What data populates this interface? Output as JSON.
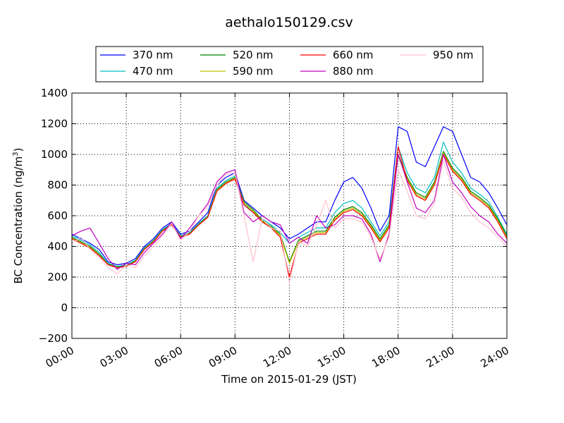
{
  "chart_data": {
    "type": "line",
    "title": "aethalo150129.csv",
    "xlabel": "Time on 2015-01-29 (JST)",
    "ylabel": {
      "prefix": "BC Concentration (ng/m",
      "superscript": "3",
      "suffix": ")"
    },
    "xlim": [
      0,
      24
    ],
    "ylim": [
      -200,
      1400
    ],
    "x_ticks": [
      "00:00",
      "03:00",
      "06:00",
      "09:00",
      "12:00",
      "15:00",
      "18:00",
      "21:00",
      "24:00"
    ],
    "y_ticks": [
      "−200",
      "0",
      "200",
      "400",
      "600",
      "800",
      "1000",
      "1200",
      "1400"
    ],
    "grid": true,
    "legend_placement": "top-center",
    "x": [
      0.0,
      0.5,
      1.0,
      1.5,
      2.0,
      2.5,
      3.0,
      3.5,
      4.0,
      4.5,
      5.0,
      5.5,
      6.0,
      6.5,
      7.0,
      7.5,
      8.0,
      8.5,
      9.0,
      9.5,
      10.0,
      10.5,
      11.0,
      11.5,
      12.0,
      12.5,
      13.0,
      13.5,
      14.0,
      14.5,
      15.0,
      15.5,
      16.0,
      16.5,
      17.0,
      17.5,
      18.0,
      18.5,
      19.0,
      19.5,
      20.0,
      20.5,
      21.0,
      21.5,
      22.0,
      22.5,
      23.0,
      23.5,
      24.0
    ],
    "series": [
      {
        "name": "370 nm",
        "color": "#0000ff",
        "values": [
          480,
          450,
          420,
          380,
          300,
          280,
          290,
          320,
          400,
          450,
          520,
          560,
          480,
          500,
          560,
          620,
          800,
          850,
          880,
          700,
          650,
          600,
          560,
          520,
          450,
          480,
          520,
          560,
          560,
          700,
          820,
          850,
          780,
          650,
          500,
          600,
          1180,
          1150,
          950,
          920,
          1050,
          1180,
          1150,
          1000,
          850,
          820,
          750,
          650,
          540
        ]
      },
      {
        "name": "470 nm",
        "color": "#00bfbf",
        "values": [
          470,
          440,
          410,
          360,
          290,
          270,
          280,
          310,
          390,
          440,
          510,
          550,
          470,
          490,
          550,
          600,
          780,
          830,
          860,
          680,
          620,
          580,
          540,
          490,
          420,
          460,
          490,
          520,
          520,
          620,
          680,
          700,
          650,
          560,
          470,
          560,
          1050,
          880,
          780,
          750,
          850,
          1080,
          950,
          880,
          780,
          740,
          690,
          590,
          480
        ]
      },
      {
        "name": "520 nm",
        "color": "#008000",
        "values": [
          460,
          430,
          400,
          350,
          285,
          265,
          275,
          305,
          385,
          435,
          505,
          545,
          465,
          485,
          545,
          595,
          770,
          820,
          850,
          690,
          640,
          570,
          530,
          480,
          300,
          440,
          470,
          500,
          500,
          590,
          640,
          660,
          620,
          540,
          450,
          540,
          1000,
          850,
          750,
          720,
          820,
          1020,
          910,
          850,
          760,
          720,
          670,
          580,
          470
        ]
      },
      {
        "name": "590 nm",
        "color": "#bfbf00",
        "values": [
          455,
          425,
          395,
          345,
          282,
          262,
          272,
          302,
          382,
          432,
          502,
          542,
          462,
          482,
          542,
          592,
          765,
          815,
          845,
          680,
          630,
          565,
          525,
          470,
          290,
          430,
          460,
          490,
          490,
          580,
          630,
          650,
          610,
          530,
          440,
          530,
          990,
          840,
          740,
          710,
          810,
          1010,
          900,
          840,
          750,
          710,
          660,
          570,
          460
        ]
      },
      {
        "name": "660 nm",
        "color": "#ff0000",
        "values": [
          450,
          420,
          390,
          340,
          280,
          260,
          270,
          300,
          380,
          430,
          500,
          540,
          460,
          480,
          540,
          590,
          760,
          810,
          840,
          670,
          620,
          560,
          520,
          460,
          200,
          420,
          450,
          480,
          480,
          570,
          620,
          640,
          600,
          520,
          430,
          520,
          1050,
          830,
          730,
          700,
          800,
          1000,
          890,
          830,
          740,
          700,
          650,
          560,
          450
        ]
      },
      {
        "name": "880 nm",
        "color": "#bf00bf",
        "values": [
          470,
          500,
          520,
          420,
          320,
          250,
          290,
          280,
          360,
          420,
          480,
          560,
          450,
          520,
          600,
          680,
          820,
          880,
          900,
          620,
          560,
          600,
          560,
          540,
          420,
          460,
          420,
          600,
          520,
          540,
          600,
          600,
          580,
          480,
          300,
          480,
          1000,
          820,
          650,
          620,
          700,
          1000,
          820,
          750,
          660,
          600,
          560,
          480,
          420
        ]
      },
      {
        "name": "950 nm",
        "color": "#ffc0cb",
        "values": [
          420,
          460,
          380,
          330,
          260,
          220,
          280,
          260,
          340,
          400,
          470,
          550,
          440,
          500,
          600,
          660,
          800,
          870,
          880,
          600,
          300,
          580,
          520,
          500,
          160,
          430,
          400,
          540,
          700,
          520,
          580,
          580,
          560,
          460,
          320,
          460,
          900,
          760,
          600,
          580,
          680,
          960,
          780,
          720,
          620,
          560,
          520,
          460,
          400
        ]
      }
    ]
  }
}
